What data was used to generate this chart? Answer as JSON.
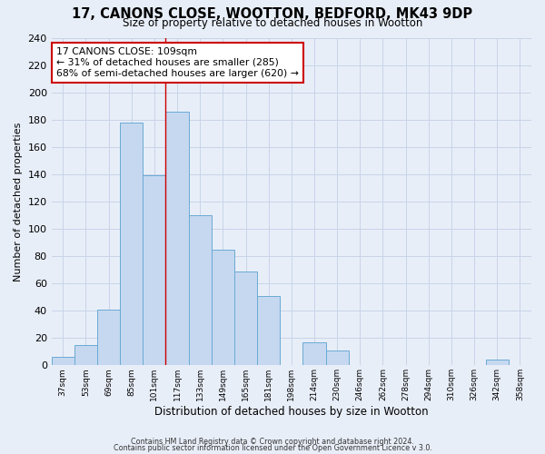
{
  "title": "17, CANONS CLOSE, WOOTTON, BEDFORD, MK43 9DP",
  "subtitle": "Size of property relative to detached houses in Wootton",
  "xlabel": "Distribution of detached houses by size in Wootton",
  "ylabel": "Number of detached properties",
  "bin_labels": [
    "37sqm",
    "53sqm",
    "69sqm",
    "85sqm",
    "101sqm",
    "117sqm",
    "133sqm",
    "149sqm",
    "165sqm",
    "181sqm",
    "198sqm",
    "214sqm",
    "230sqm",
    "246sqm",
    "262sqm",
    "278sqm",
    "294sqm",
    "310sqm",
    "326sqm",
    "342sqm",
    "358sqm"
  ],
  "bar_values": [
    6,
    15,
    41,
    178,
    139,
    186,
    110,
    85,
    69,
    51,
    0,
    17,
    11,
    0,
    0,
    0,
    0,
    0,
    0,
    4,
    0
  ],
  "bar_color": "#c5d8f0",
  "bar_edge_color": "#6aaad4",
  "vline_x": 4.5,
  "vline_color": "#cc0000",
  "annotation_title": "17 CANONS CLOSE: 109sqm",
  "annotation_line1": "← 31% of detached houses are smaller (285)",
  "annotation_line2": "68% of semi-detached houses are larger (620) →",
  "ylim": [
    0,
    240
  ],
  "yticks": [
    0,
    20,
    40,
    60,
    80,
    100,
    120,
    140,
    160,
    180,
    200,
    220,
    240
  ],
  "footnote1": "Contains HM Land Registry data © Crown copyright and database right 2024.",
  "footnote2": "Contains public sector information licensed under the Open Government Licence v 3.0.",
  "background_color": "#e8eef8",
  "grid_color": "#c8d4e8"
}
